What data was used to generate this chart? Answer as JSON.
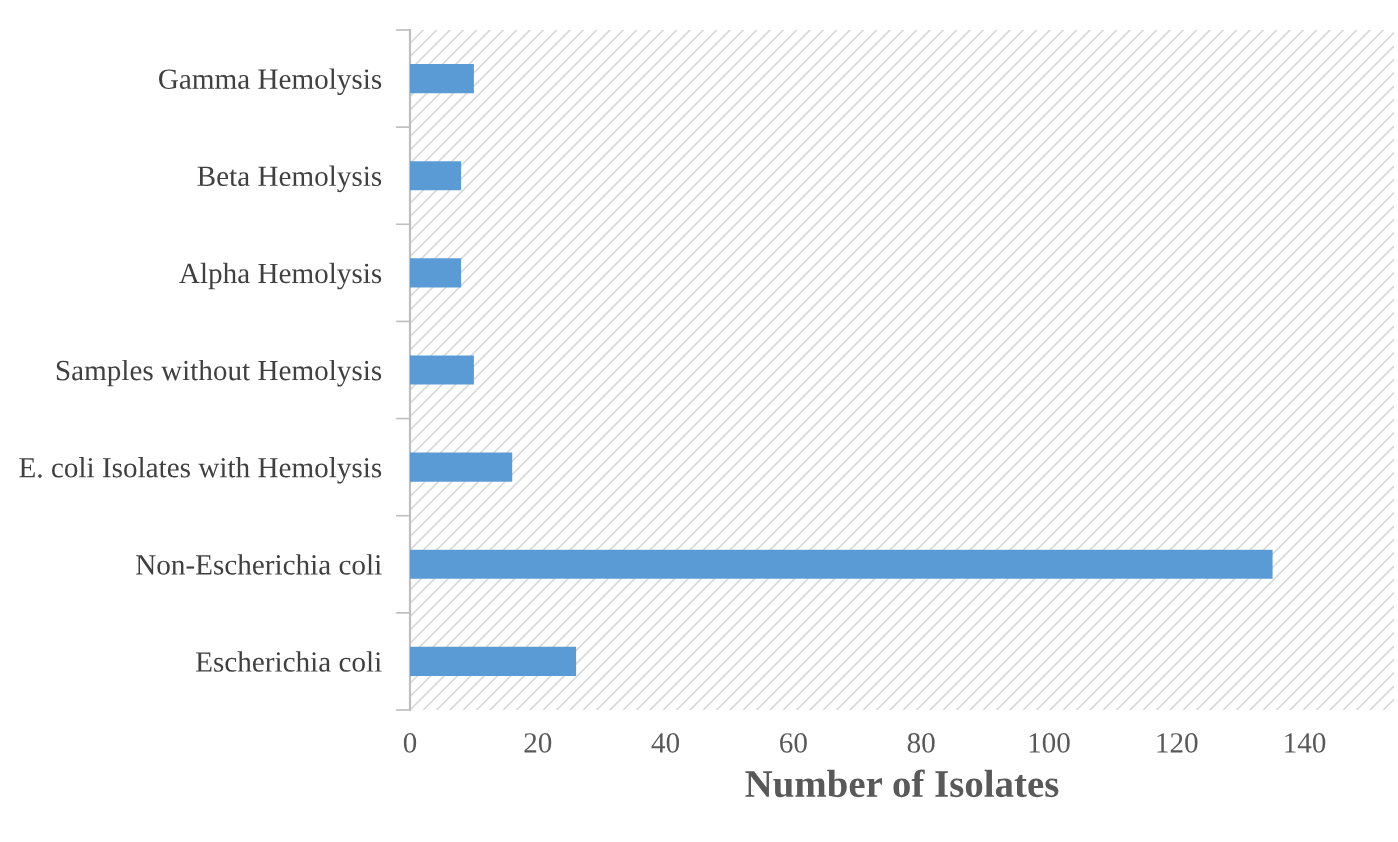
{
  "chart_data": {
    "type": "bar",
    "orientation": "horizontal",
    "xlabel": "Number of Isolates",
    "categories": [
      "Gamma Hemolysis",
      "Beta Hemolysis",
      "Alpha Hemolysis",
      "Samples without Hemolysis",
      "E. coli Isolates with Hemolysis",
      "Non-Escherichia coli",
      "Escherichia coli"
    ],
    "values": [
      10,
      8,
      8,
      10,
      16,
      135,
      26
    ],
    "color": "#5b9bd5",
    "xlim": [
      0,
      154
    ],
    "xticks": [
      0,
      20,
      40,
      60,
      80,
      100,
      120,
      140
    ],
    "grid": false,
    "legend": false
  }
}
